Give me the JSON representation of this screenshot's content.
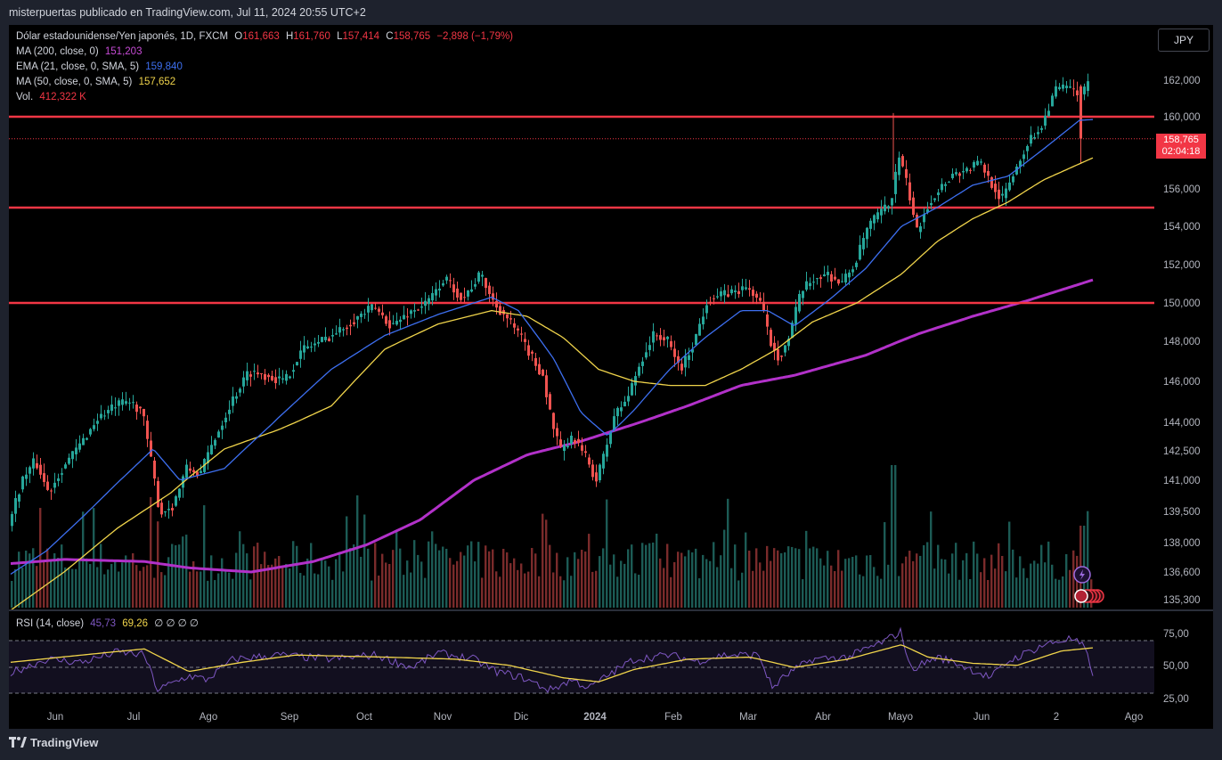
{
  "header": {
    "text": "misterpuertas publicado en TradingView.com, Jul 11, 2024 20:55 UTC+2"
  },
  "currency_button": "JPY",
  "legend": {
    "symbol": "Dólar estadounidense/Yen japonés, 1D, FXCM",
    "ohlc": [
      {
        "k": "O",
        "v": "161,663"
      },
      {
        "k": "H",
        "v": "161,760"
      },
      {
        "k": "L",
        "v": "157,414"
      },
      {
        "k": "C",
        "v": "158,765"
      }
    ],
    "change": "−2,898 (−1,79%)",
    "ma200": {
      "label": "MA (200, close, 0)",
      "value": "151,203",
      "color": "#c74bd6"
    },
    "ema21": {
      "label": "EMA (21, close, 0, SMA, 5)",
      "value": "159,840",
      "color": "#3d6ff0"
    },
    "ma50": {
      "label": "MA (50, close, 0, SMA, 5)",
      "value": "157,652",
      "color": "#f0d44b"
    },
    "vol": {
      "label": "Vol.",
      "value": "412,322 K",
      "color": "#f23645"
    },
    "rsi": {
      "label": "RSI (14, close)",
      "value": "45,73",
      "ma": "69,26",
      "extras": "∅ ∅ ∅ ∅"
    }
  },
  "price_tag": {
    "price": "158,765",
    "countdown": "02:04:18"
  },
  "footer": {
    "brand": "TradingView"
  },
  "colors": {
    "up": "#26a69a",
    "down": "#ef5350",
    "level": "#f23645",
    "rsi": "#7e57c2",
    "rsi_ma": "#f0d44b"
  },
  "chart_data": {
    "type": "candlestick",
    "price_axis_ticks": [
      135.3,
      136.6,
      138.0,
      139.5,
      141.0,
      142.5,
      144.0,
      146.0,
      148.0,
      150.0,
      152.0,
      154.0,
      156.0,
      158.0,
      160.0,
      162.0
    ],
    "price_axis_labels": [
      "135,300",
      "136,600",
      "138,000",
      "139,500",
      "141,000",
      "142,500",
      "144,000",
      "146,000",
      "148,000",
      "150,000",
      "152,000",
      "154,000",
      "156,000",
      "158,000",
      "160,000",
      "162,000"
    ],
    "time_axis_labels": [
      "Jun",
      "Jul",
      "Ago",
      "Sep",
      "Oct",
      "Nov",
      "Dic",
      "2024",
      "Feb",
      "Mar",
      "Abr",
      "Mayo",
      "Jun",
      "2",
      "Ago"
    ],
    "horizontal_levels": [
      160.0,
      155.0,
      150.0
    ],
    "current_price": 158.765,
    "rsi_axis_labels": [
      "75,00",
      "50,00",
      "25,00"
    ],
    "rsi_levels": [
      70,
      50,
      30
    ],
    "price_path_anchors": [
      [
        0,
        138.8
      ],
      [
        15,
        141.0
      ],
      [
        30,
        142.0
      ],
      [
        45,
        140.4
      ],
      [
        60,
        141.6
      ],
      [
        80,
        142.8
      ],
      [
        100,
        144.2
      ],
      [
        120,
        144.8
      ],
      [
        135,
        145.0
      ],
      [
        150,
        144.6
      ],
      [
        160,
        142.0
      ],
      [
        170,
        139.4
      ],
      [
        185,
        139.8
      ],
      [
        200,
        141.6
      ],
      [
        215,
        141.3
      ],
      [
        230,
        143.0
      ],
      [
        250,
        145.0
      ],
      [
        270,
        146.5
      ],
      [
        290,
        146.3
      ],
      [
        310,
        146.0
      ],
      [
        330,
        147.6
      ],
      [
        350,
        148.0
      ],
      [
        370,
        148.5
      ],
      [
        390,
        149.2
      ],
      [
        410,
        149.8
      ],
      [
        430,
        148.8
      ],
      [
        450,
        149.5
      ],
      [
        470,
        150.0
      ],
      [
        490,
        151.3
      ],
      [
        510,
        150.2
      ],
      [
        530,
        151.5
      ],
      [
        545,
        150.0
      ],
      [
        560,
        149.2
      ],
      [
        575,
        148.2
      ],
      [
        590,
        147.0
      ],
      [
        600,
        146.3
      ],
      [
        610,
        144.0
      ],
      [
        620,
        142.5
      ],
      [
        635,
        143.2
      ],
      [
        650,
        142.0
      ],
      [
        660,
        141.0
      ],
      [
        670,
        142.5
      ],
      [
        680,
        144.3
      ],
      [
        695,
        145.2
      ],
      [
        710,
        147.0
      ],
      [
        725,
        148.4
      ],
      [
        740,
        148.0
      ],
      [
        755,
        146.6
      ],
      [
        770,
        148.0
      ],
      [
        785,
        150.2
      ],
      [
        800,
        150.4
      ],
      [
        815,
        150.6
      ],
      [
        830,
        150.8
      ],
      [
        845,
        150.0
      ],
      [
        855,
        148.0
      ],
      [
        865,
        147.2
      ],
      [
        875,
        148.0
      ],
      [
        890,
        150.6
      ],
      [
        905,
        151.3
      ],
      [
        920,
        151.5
      ],
      [
        935,
        151.0
      ],
      [
        950,
        152.0
      ],
      [
        965,
        154.0
      ],
      [
        980,
        154.8
      ],
      [
        990,
        155.2
      ],
      [
        1000,
        157.8
      ],
      [
        1010,
        156.0
      ],
      [
        1020,
        153.7
      ],
      [
        1030,
        155.0
      ],
      [
        1045,
        156.0
      ],
      [
        1060,
        156.8
      ],
      [
        1075,
        157.0
      ],
      [
        1090,
        157.5
      ],
      [
        1105,
        156.2
      ],
      [
        1115,
        155.4
      ],
      [
        1130,
        157.0
      ],
      [
        1145,
        158.6
      ],
      [
        1160,
        159.5
      ],
      [
        1175,
        161.5
      ],
      [
        1190,
        161.6
      ],
      [
        1205,
        161.2
      ],
      [
        1212,
        161.7
      ],
      [
        1215,
        158.8
      ]
    ],
    "ma50_anchors": [
      [
        0,
        134.8
      ],
      [
        60,
        136.6
      ],
      [
        120,
        138.7
      ],
      [
        180,
        140.4
      ],
      [
        240,
        142.6
      ],
      [
        300,
        143.6
      ],
      [
        360,
        144.8
      ],
      [
        420,
        147.6
      ],
      [
        480,
        148.9
      ],
      [
        540,
        149.6
      ],
      [
        580,
        149.3
      ],
      [
        620,
        148.2
      ],
      [
        660,
        146.6
      ],
      [
        700,
        146.0
      ],
      [
        740,
        145.8
      ],
      [
        780,
        145.8
      ],
      [
        820,
        146.6
      ],
      [
        860,
        147.6
      ],
      [
        900,
        149.0
      ],
      [
        950,
        150.0
      ],
      [
        1000,
        151.5
      ],
      [
        1040,
        153.2
      ],
      [
        1080,
        154.4
      ],
      [
        1120,
        155.3
      ],
      [
        1160,
        156.5
      ],
      [
        1215,
        157.7
      ]
    ],
    "ema21_anchors": [
      [
        0,
        136.5
      ],
      [
        40,
        137.6
      ],
      [
        80,
        139.2
      ],
      [
        130,
        141.3
      ],
      [
        160,
        142.6
      ],
      [
        190,
        141.0
      ],
      [
        240,
        141.6
      ],
      [
        300,
        144.2
      ],
      [
        360,
        146.6
      ],
      [
        420,
        148.3
      ],
      [
        480,
        149.4
      ],
      [
        540,
        150.3
      ],
      [
        570,
        149.6
      ],
      [
        610,
        147.1
      ],
      [
        640,
        144.5
      ],
      [
        670,
        143.3
      ],
      [
        700,
        144.6
      ],
      [
        740,
        146.6
      ],
      [
        780,
        148.2
      ],
      [
        820,
        149.6
      ],
      [
        850,
        149.6
      ],
      [
        880,
        148.8
      ],
      [
        920,
        150.2
      ],
      [
        960,
        151.8
      ],
      [
        1000,
        154.0
      ],
      [
        1040,
        155.0
      ],
      [
        1080,
        156.2
      ],
      [
        1120,
        156.7
      ],
      [
        1160,
        158.2
      ],
      [
        1200,
        159.8
      ],
      [
        1215,
        159.84
      ]
    ],
    "ma200_anchors": [
      [
        0,
        137.0
      ],
      [
        60,
        137.2
      ],
      [
        150,
        137.1
      ],
      [
        200,
        136.8
      ],
      [
        270,
        136.6
      ],
      [
        340,
        137.1
      ],
      [
        400,
        137.9
      ],
      [
        460,
        139.1
      ],
      [
        520,
        141.0
      ],
      [
        580,
        142.3
      ],
      [
        640,
        143.0
      ],
      [
        700,
        143.9
      ],
      [
        760,
        144.8
      ],
      [
        820,
        145.8
      ],
      [
        880,
        146.3
      ],
      [
        960,
        147.3
      ],
      [
        1020,
        148.4
      ],
      [
        1080,
        149.3
      ],
      [
        1140,
        150.1
      ],
      [
        1215,
        151.2
      ]
    ]
  }
}
